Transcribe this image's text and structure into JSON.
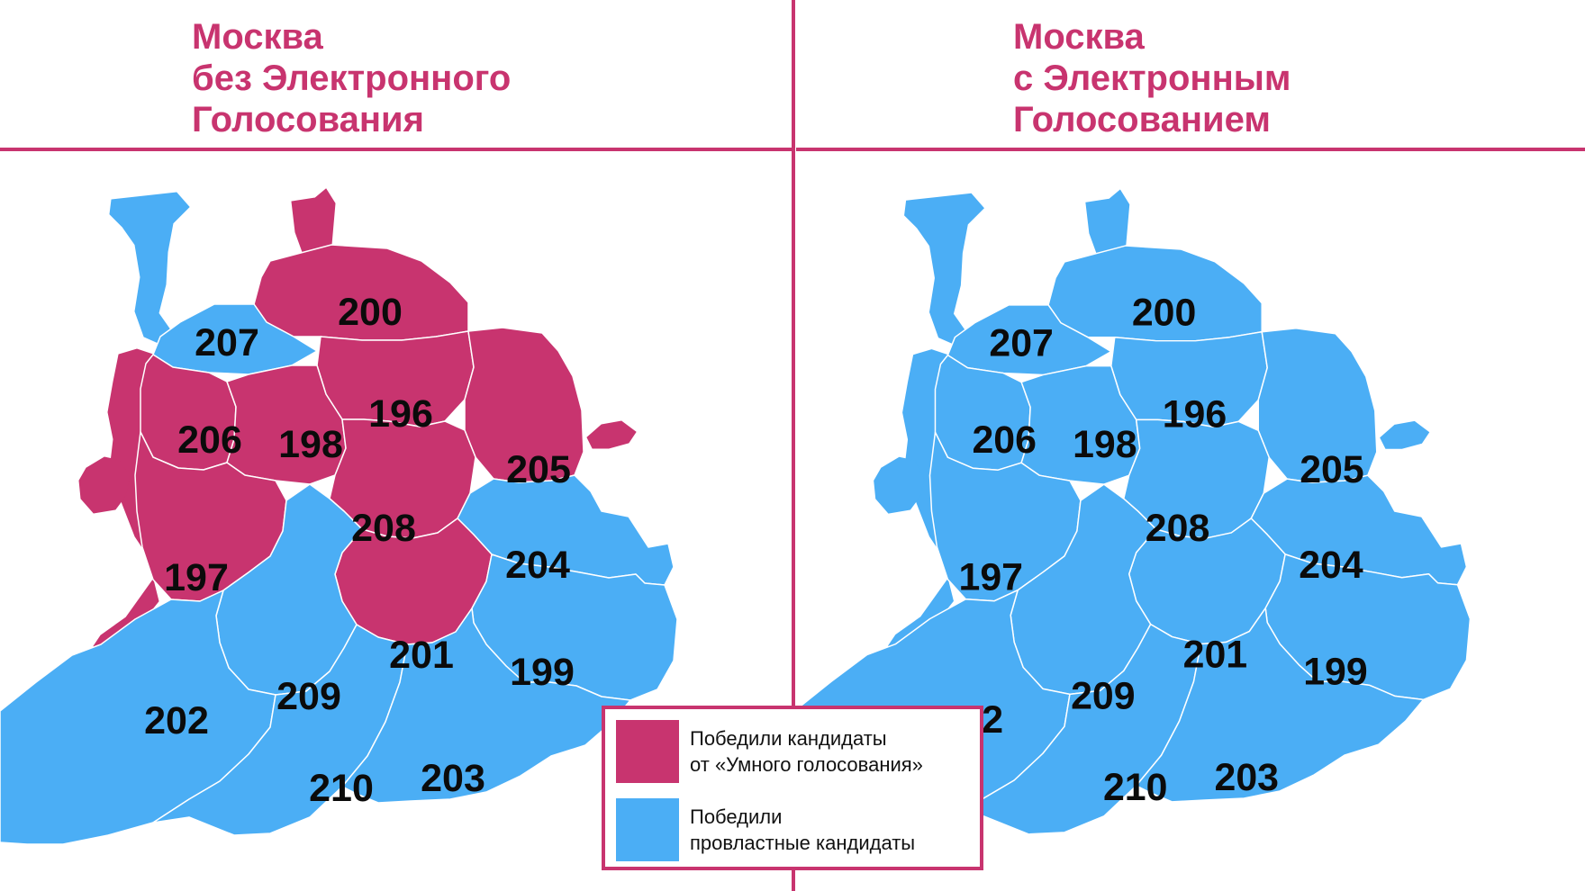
{
  "left_title": [
    "Москва",
    "без Электронного",
    "Голосования"
  ],
  "right_title": [
    "Москва",
    "с Электронным",
    "Голосованием"
  ],
  "colors": {
    "accent": "#c8346f",
    "smart_voting": "#c8346f",
    "pro_government": "#4baef5",
    "boundary": "#ffffff"
  },
  "district_numbers": [
    "200",
    "207",
    "196",
    "206",
    "198",
    "205",
    "208",
    "204",
    "197",
    "201",
    "199",
    "209",
    "202",
    "210",
    "203"
  ],
  "left_map_winners": {
    "200": "smart_voting",
    "207": "pro_government",
    "196": "smart_voting",
    "206": "smart_voting",
    "198": "smart_voting",
    "205": "smart_voting",
    "208": "smart_voting",
    "204": "pro_government",
    "197": "smart_voting",
    "201": "smart_voting",
    "199": "pro_government",
    "209": "pro_government",
    "202": "pro_government",
    "210": "pro_government",
    "203": "pro_government"
  },
  "right_map_winners": {
    "200": "pro_government",
    "207": "pro_government",
    "196": "pro_government",
    "206": "pro_government",
    "198": "pro_government",
    "205": "pro_government",
    "208": "pro_government",
    "204": "pro_government",
    "197": "pro_government",
    "201": "pro_government",
    "199": "pro_government",
    "209": "pro_government",
    "202": "pro_government",
    "210": "pro_government",
    "203": "pro_government"
  },
  "legend": [
    {
      "color": "smart_voting",
      "lines": [
        "Победили кандидаты",
        "от «Умного голосования»"
      ]
    },
    {
      "color": "pro_government",
      "lines": [
        "Победили",
        "провластные кандидаты"
      ]
    }
  ]
}
